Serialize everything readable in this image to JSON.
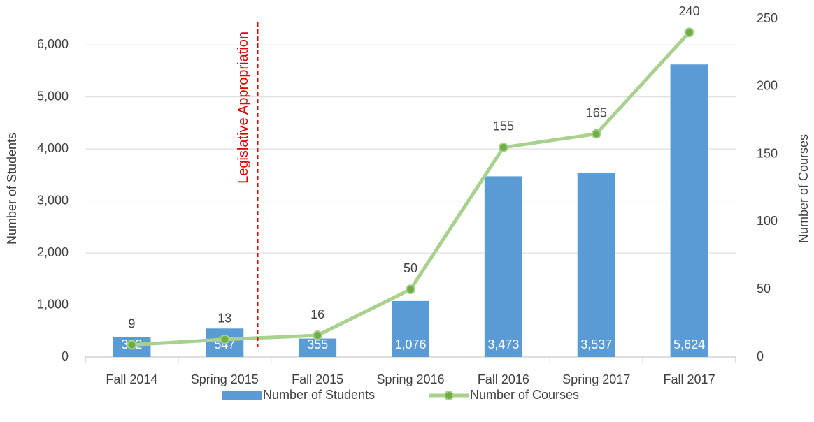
{
  "chart_data": {
    "type": "bar_line",
    "categories": [
      "Fall 2014",
      "Spring 2015",
      "Fall 2015",
      "Spring 2016",
      "Fall 2016",
      "Spring 2017",
      "Fall 2017"
    ],
    "series": [
      {
        "name": "Number of Students",
        "type": "bar",
        "color": "#5b9bd5",
        "axis": "y",
        "values": [
          382,
          547,
          355,
          1076,
          3473,
          3537,
          5624
        ],
        "value_labels": [
          "382",
          "547",
          "355",
          "1,076",
          "3,473",
          "3,537",
          "5,624"
        ]
      },
      {
        "name": "Number of Courses",
        "type": "line",
        "color": "#a9d18e",
        "marker_color": "#70ad47",
        "axis": "y2",
        "values": [
          9,
          13,
          16,
          50,
          155,
          165,
          240
        ]
      }
    ],
    "ylabel": "Number of Students",
    "y2label": "Number of Courses",
    "ylim": [
      0,
      6500
    ],
    "yticks": [
      0,
      {
        "value": 1000,
        "label": "1,000"
      },
      {
        "value": 2000,
        "label": "2,000"
      },
      {
        "value": 3000,
        "label": "3,000"
      },
      {
        "value": 4000,
        "label": "4,000"
      },
      {
        "value": 5000,
        "label": "5,000"
      },
      {
        "value": 6000,
        "label": "6,000"
      }
    ],
    "y2lim": [
      0,
      250
    ],
    "y2ticks": [
      0,
      50,
      100,
      150,
      200,
      250
    ],
    "grid": true,
    "legend": "bottom",
    "annotation": {
      "text": "Legislative Appropriation",
      "color": "#e00000"
    }
  }
}
